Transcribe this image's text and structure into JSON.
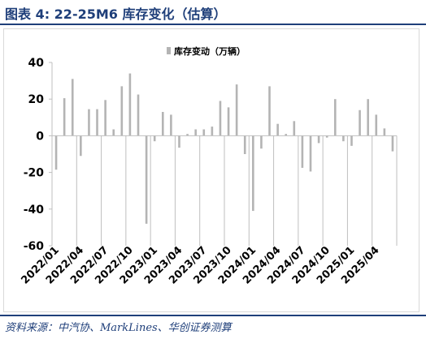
{
  "figure": {
    "title": "图表 4:  22-25M6 库存变化（估算）",
    "source": "资料来源：中汽协、MarkLines、华创证券测算"
  },
  "colors": {
    "bar": "#b4b4b4",
    "axis": "#bfbfbf",
    "title": "#1f3f7a",
    "text": "#000000"
  },
  "chart_data": {
    "type": "bar",
    "legend_position": "top",
    "grid": false,
    "ylim": [
      -60,
      40
    ],
    "yticks": [
      "40",
      "20",
      "0",
      "-20",
      "-40",
      "-60"
    ],
    "xtick_labels": [
      "2022/01",
      "2022/04",
      "2022/07",
      "2022/10",
      "2023/01",
      "2023/04",
      "2023/07",
      "2023/10",
      "2024/01",
      "2024/04",
      "2024/07",
      "2024/10",
      "2025/01",
      "2025/04"
    ],
    "series": [
      {
        "name": "库存变动（万辆）",
        "values": [
          -18.5,
          20.5,
          31,
          -11,
          14.5,
          14.5,
          19.5,
          3.5,
          27,
          34,
          22.5,
          -48,
          -3,
          13,
          11.5,
          -6.5,
          1,
          3.5,
          3.5,
          5,
          19,
          15.5,
          28,
          -10,
          -41,
          -7,
          27,
          6.5,
          1,
          8,
          -17.5,
          -19.5,
          -4,
          -1,
          20,
          -3,
          -5.5,
          14,
          20,
          11.5,
          4,
          -8.5
        ]
      }
    ]
  }
}
